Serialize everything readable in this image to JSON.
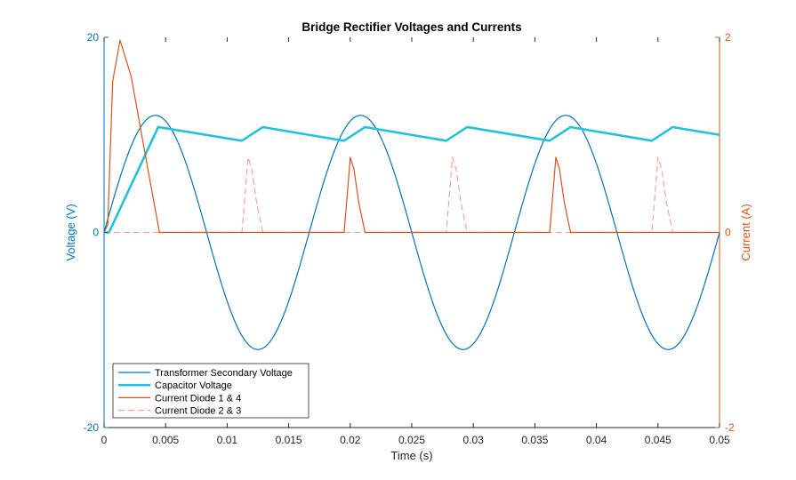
{
  "chart_data": {
    "type": "line",
    "title": "Bridge Rectifier Voltages and Currents",
    "xlabel": "Time (s)",
    "ylabel_left": "Voltage (V)",
    "ylabel_right": "Current (A)",
    "xlim": [
      0,
      0.05
    ],
    "ylim_left": [
      -20,
      20
    ],
    "ylim_right": [
      -2,
      2
    ],
    "x_ticks": [
      0,
      0.005,
      0.01,
      0.015,
      0.02,
      0.025,
      0.03,
      0.035,
      0.04,
      0.045,
      0.05
    ],
    "x_tick_labels": [
      "0",
      "0.005",
      "0.01",
      "0.015",
      "0.02",
      "0.025",
      "0.03",
      "0.035",
      "0.04",
      "0.045",
      "0.05"
    ],
    "y_ticks_left": [
      -20,
      0,
      20
    ],
    "y_tick_labels_left": [
      "-20",
      "0",
      "20"
    ],
    "y_ticks_right": [
      -2,
      0,
      2
    ],
    "y_tick_labels_right": [
      "-2",
      "0",
      "2"
    ],
    "grid": false,
    "legend_placement": "bottom-left",
    "colors": {
      "left_axis": "#0072BD",
      "right_axis": "#D95319",
      "secondary_voltage": "#0072BD",
      "capacitor_voltage": "#22C1E0",
      "diode_14": "#D95319",
      "diode_23": "#F4A3A3"
    },
    "series": [
      {
        "name": "Transformer Secondary Voltage",
        "axis": "left",
        "style": "solid",
        "amplitude": 12,
        "frequency": 60,
        "x": [
          0,
          0.00417,
          0.00833,
          0.0125,
          0.01667,
          0.02083,
          0.025,
          0.02917,
          0.03333,
          0.0375,
          0.04167,
          0.04583,
          0.05
        ],
        "values": [
          0,
          12,
          0,
          -12,
          0,
          12,
          0,
          -12,
          0,
          12,
          0,
          -12,
          0
        ]
      },
      {
        "name": "Capacitor Voltage",
        "axis": "left",
        "style": "solid-thick",
        "x": [
          0,
          0.0004,
          0.0044,
          0.0112,
          0.0129,
          0.0195,
          0.0212,
          0.0278,
          0.0295,
          0.0362,
          0.0379,
          0.0445,
          0.0462,
          0.05
        ],
        "values": [
          0,
          0,
          10.8,
          9.4,
          10.8,
          9.4,
          10.8,
          9.4,
          10.8,
          9.4,
          10.8,
          9.4,
          10.8,
          10.0
        ]
      },
      {
        "name": "Current Diode 1 & 4",
        "axis": "right",
        "style": "solid",
        "x": [
          0,
          0.0003,
          0.0007,
          0.0013,
          0.0022,
          0.0032,
          0.0045,
          0.0195,
          0.0198,
          0.02,
          0.0203,
          0.0207,
          0.0212,
          0.0362,
          0.0365,
          0.0367,
          0.037,
          0.0374,
          0.0379,
          0.05
        ],
        "values": [
          0,
          0.08,
          1.55,
          1.97,
          1.6,
          0.9,
          0,
          0,
          0.45,
          0.77,
          0.65,
          0.3,
          0,
          0,
          0.45,
          0.77,
          0.65,
          0.3,
          0,
          0
        ]
      },
      {
        "name": "Current Diode 2 & 3",
        "axis": "right",
        "style": "dashed",
        "x": [
          0,
          0.0112,
          0.0115,
          0.0117,
          0.012,
          0.0124,
          0.0129,
          0.0278,
          0.0281,
          0.0283,
          0.0286,
          0.029,
          0.0295,
          0.0445,
          0.0448,
          0.045,
          0.0453,
          0.0457,
          0.0462,
          0.05
        ],
        "values": [
          0,
          0,
          0.45,
          0.77,
          0.65,
          0.3,
          0,
          0,
          0.45,
          0.77,
          0.65,
          0.3,
          0,
          0,
          0.45,
          0.77,
          0.65,
          0.3,
          0,
          0
        ]
      }
    ]
  }
}
